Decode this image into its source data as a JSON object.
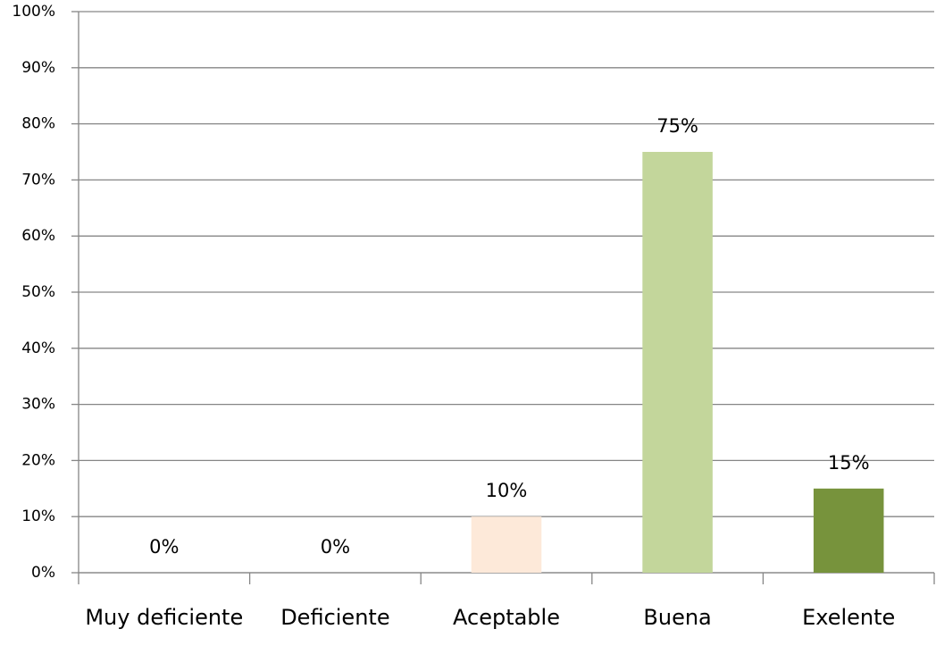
{
  "chart_data": {
    "type": "bar",
    "categories": [
      "Muy deficiente",
      "Deficiente",
      "Aceptable",
      "Buena",
      "Exelente"
    ],
    "values": [
      0,
      0,
      10,
      75,
      15
    ],
    "value_labels": [
      "0%",
      "0%",
      "10%",
      "75%",
      "15%"
    ],
    "colors": [
      null,
      null,
      "#fde9d9",
      "#c3d69b",
      "#77933c"
    ],
    "ylim": [
      0,
      100
    ],
    "yticks": [
      {
        "value": 0,
        "label": "0%"
      },
      {
        "value": 10,
        "label": "10%"
      },
      {
        "value": 20,
        "label": "20%"
      },
      {
        "value": 30,
        "label": "30%"
      },
      {
        "value": 40,
        "label": "40%"
      },
      {
        "value": 50,
        "label": "50%"
      },
      {
        "value": 60,
        "label": "60%"
      },
      {
        "value": 70,
        "label": "70%"
      },
      {
        "value": 80,
        "label": "80%"
      },
      {
        "value": 90,
        "label": "90%"
      },
      {
        "value": 100,
        "label": "100%"
      }
    ],
    "grid": true
  }
}
